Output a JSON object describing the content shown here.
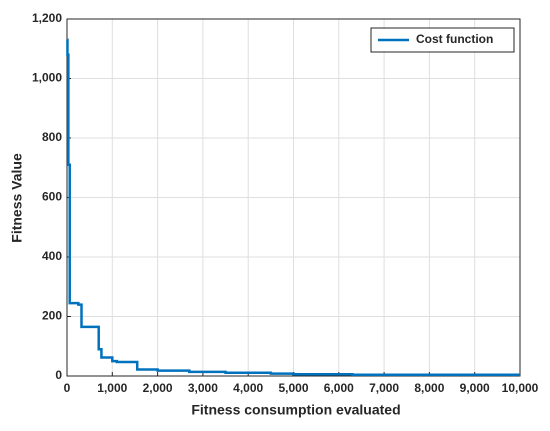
{
  "chart_data": {
    "type": "line",
    "xlabel": "Fitness consumption evaluated",
    "ylabel": "Fitness Value",
    "x": [
      0,
      10,
      10,
      30,
      30,
      60,
      60,
      250,
      250,
      320,
      320,
      700,
      700,
      760,
      760,
      1000,
      1000,
      1100,
      1100,
      1550,
      1550,
      2000,
      2000,
      2700,
      2700,
      3500,
      3500,
      4500,
      4500,
      5000,
      5000,
      6300,
      6300,
      10000
    ],
    "series": [
      {
        "name": "Cost function",
        "color": "#0072bd",
        "values": [
          1130,
          1130,
          1080,
          1080,
          710,
          710,
          245,
          245,
          240,
          240,
          165,
          165,
          90,
          90,
          62,
          62,
          50,
          50,
          47,
          47,
          22,
          22,
          18,
          18,
          14,
          14,
          11,
          11,
          8,
          8,
          6,
          6,
          4,
          4
        ]
      }
    ],
    "xlim": [
      0,
      10000
    ],
    "xticks": [
      0,
      {
        "value": 1000,
        "label": "1,000"
      },
      {
        "value": 2000,
        "label": "2,000"
      },
      {
        "value": 3000,
        "label": "3,000"
      },
      {
        "value": 4000,
        "label": "4,000"
      },
      {
        "value": 5000,
        "label": "5,000"
      },
      {
        "value": 6000,
        "label": "6,000"
      },
      {
        "value": 7000,
        "label": "7,000"
      },
      {
        "value": 8000,
        "label": "8,000"
      },
      {
        "value": 9000,
        "label": "9,000"
      },
      {
        "value": 10000,
        "label": "10,000"
      }
    ],
    "ylim": [
      0,
      1200
    ],
    "yticks": [
      0,
      200,
      400,
      600,
      800,
      {
        "value": 1000,
        "label": "1,000"
      },
      {
        "value": 1200,
        "label": "1,200"
      }
    ],
    "grid": true,
    "legend": "upper right"
  }
}
